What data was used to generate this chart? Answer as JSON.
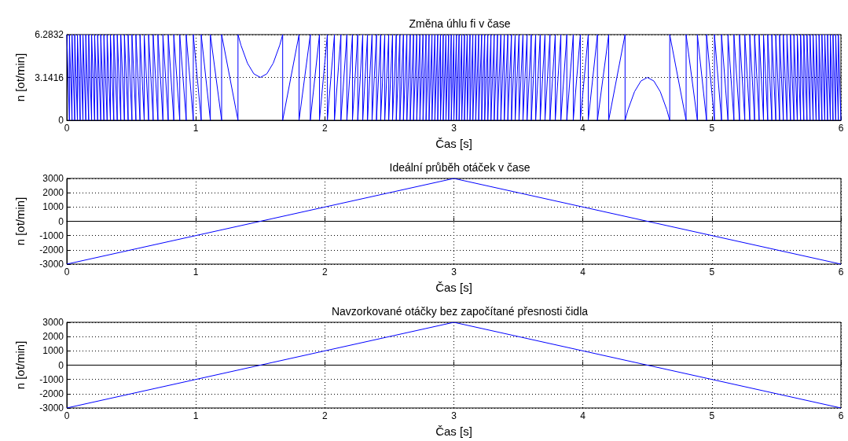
{
  "chart_data": [
    {
      "type": "line",
      "title": "Změna úhlu fi v čase",
      "xlabel": "Čas [s]",
      "ylabel": "n [ot/min]",
      "xlim": [
        0,
        6
      ],
      "ylim": [
        0,
        6.2832
      ],
      "xticks": [
        0,
        1,
        2,
        3,
        4,
        5,
        6
      ],
      "yticks": [
        0,
        3.1416,
        6.2832
      ],
      "grid": true,
      "series": [
        {
          "color": "#0000ff",
          "x": [
            0,
            0.0201,
            0.0201,
            0.0405,
            0.0405,
            0.0613,
            0.0613,
            0.0823,
            0.0823,
            0.1036,
            0.1036,
            0.1252,
            0.1252,
            0.1472,
            0.1472,
            0.1696,
            0.1696,
            0.1923,
            0.1923,
            0.2155,
            0.2155,
            0.239,
            0.239,
            0.2631,
            0.2631,
            0.2876,
            0.2876,
            0.3126,
            0.3126,
            0.3381,
            0.3381,
            0.3642,
            0.3642,
            0.3909,
            0.3909,
            0.4183,
            0.4183,
            0.4464,
            0.4464,
            0.4753,
            0.4753,
            0.505,
            0.505,
            0.5356,
            0.5356,
            0.5673,
            0.5673,
            0.6,
            0.6,
            0.634,
            0.634,
            0.6693,
            0.6693,
            0.7063,
            0.7063,
            0.745,
            0.745,
            0.7859,
            0.7859,
            0.8292,
            0.8292,
            0.8755,
            0.8755,
            0.9255,
            0.9255,
            0.9804,
            0.9804,
            1.0417,
            1.0417,
            1.1127,
            1.1127,
            1.2,
            1.2,
            1.3268,
            1.3268,
            1.35,
            1.4,
            1.45,
            1.5,
            1.55,
            1.6,
            1.65,
            1.6732,
            1.6732,
            1.8,
            1.8,
            1.8873,
            1.8873,
            1.9583,
            1.9583,
            2.0196,
            2.0196,
            2.0745,
            2.0745,
            2.1245,
            2.1245,
            2.1708,
            2.1708,
            2.2141,
            2.2141,
            2.255,
            2.255,
            2.2937,
            2.2937,
            2.3307,
            2.3307,
            2.366,
            2.366,
            2.4,
            2.4,
            2.4327,
            2.4327,
            2.4644,
            2.4644,
            2.495,
            2.495,
            2.5247,
            2.5247,
            2.5536,
            2.5536,
            2.5817,
            2.5817,
            2.6091,
            2.6091,
            2.6358,
            2.6358,
            2.6619,
            2.6619,
            2.6874,
            2.6874,
            2.7124,
            2.7124,
            2.7369,
            2.7369,
            2.761,
            2.761,
            2.7845,
            2.7845,
            2.8077,
            2.8077,
            2.8304,
            2.8304,
            2.8528,
            2.8528,
            2.8748,
            2.8748,
            2.8964,
            2.8964,
            2.9177,
            2.9177,
            2.9387,
            2.9387,
            2.9595,
            2.9595,
            2.9799,
            2.9799,
            3,
            3,
            3.0201,
            3.0201,
            3.0405,
            3.0405,
            3.0613,
            3.0613,
            3.0823,
            3.0823,
            3.1036,
            3.1036,
            3.1252,
            3.1252,
            3.1472,
            3.1472,
            3.1696,
            3.1696,
            3.1923,
            3.1923,
            3.2155,
            3.2155,
            3.239,
            3.239,
            3.2631,
            3.2631,
            3.2876,
            3.2876,
            3.3126,
            3.3126,
            3.3381,
            3.3381,
            3.3642,
            3.3642,
            3.3909,
            3.3909,
            3.4183,
            3.4183,
            3.4464,
            3.4464,
            3.4753,
            3.4753,
            3.505,
            3.505,
            3.5356,
            3.5356,
            3.5673,
            3.5673,
            3.6,
            3.6,
            3.634,
            3.634,
            3.6693,
            3.6693,
            3.7063,
            3.7063,
            3.745,
            3.745,
            3.7859,
            3.7859,
            3.8292,
            3.8292,
            3.8755,
            3.8755,
            3.9255,
            3.9255,
            3.9804,
            3.9804,
            4.0417,
            4.0417,
            4.1127,
            4.1127,
            4.2,
            4.2,
            4.3268,
            4.3268,
            4.35,
            4.4,
            4.45,
            4.5,
            4.55,
            4.6,
            4.65,
            4.6732,
            4.6732,
            4.8,
            4.8,
            4.8873,
            4.8873,
            4.9583,
            4.9583,
            5.0196,
            5.0196,
            5.0745,
            5.0745,
            5.1245,
            5.1245,
            5.1708,
            5.1708,
            5.2141,
            5.2141,
            5.255,
            5.255,
            5.2937,
            5.2937,
            5.3307,
            5.3307,
            5.366,
            5.366,
            5.4,
            5.4,
            5.4327,
            5.4327,
            5.4644,
            5.4644,
            5.495,
            5.495,
            5.5247,
            5.5247,
            5.5536,
            5.5536,
            5.5817,
            5.5817,
            5.6091,
            5.6091,
            5.6358,
            5.6358,
            5.6619,
            5.6619,
            5.6874,
            5.6874,
            5.7124,
            5.7124,
            5.7369,
            5.7369,
            5.761,
            5.761,
            5.7845,
            5.7845,
            5.8077,
            5.8077,
            5.8304,
            5.8304,
            5.8528,
            5.8528,
            5.8748,
            5.8748,
            5.8964,
            5.8964,
            5.9177,
            5.9177,
            5.9387,
            5.9387,
            5.9595,
            5.9595,
            5.9799,
            5.9799,
            6
          ],
          "values": [
            6.2832,
            0,
            6.2832,
            0,
            6.2832,
            0,
            6.2832,
            0,
            6.2832,
            0,
            6.2832,
            0,
            6.2832,
            0,
            6.2832,
            0,
            6.2832,
            0,
            6.2832,
            0,
            6.2832,
            0,
            6.2832,
            0,
            6.2832,
            0,
            6.2832,
            0,
            6.2832,
            0,
            6.2832,
            0,
            6.2832,
            0,
            6.2832,
            0,
            6.2832,
            0,
            6.2832,
            0,
            6.2832,
            0,
            6.2832,
            0,
            6.2832,
            0,
            6.2832,
            0,
            6.2832,
            0,
            6.2832,
            0,
            6.2832,
            0,
            6.2832,
            0,
            6.2832,
            0,
            6.2832,
            0,
            6.2832,
            0,
            6.2832,
            0,
            6.2832,
            0,
            6.2832,
            0,
            6.2832,
            0,
            6.2832,
            0,
            6.2832,
            0,
            6.2832,
            5.498,
            4.189,
            3.403,
            3.1416,
            3.403,
            4.189,
            5.498,
            6.2832,
            0,
            6.2832,
            0,
            6.2832,
            0,
            6.2832,
            0,
            6.2832,
            0,
            6.2832,
            0,
            6.2832,
            0,
            6.2832,
            0,
            6.2832,
            0,
            6.2832,
            0,
            6.2832,
            0,
            6.2832,
            0,
            6.2832,
            0,
            6.2832,
            0,
            6.2832,
            0,
            6.2832,
            0,
            6.2832,
            0,
            6.2832,
            0,
            6.2832,
            0,
            6.2832,
            0,
            6.2832,
            0,
            6.2832,
            0,
            6.2832,
            0,
            6.2832,
            0,
            6.2832,
            0,
            6.2832,
            0,
            6.2832,
            0,
            6.2832,
            0,
            6.2832,
            0,
            6.2832,
            0,
            6.2832,
            0,
            6.2832,
            0,
            6.2832,
            0,
            6.2832,
            0,
            6.2832,
            0,
            6.2832,
            0,
            6.2832,
            0,
            6.2832,
            0,
            6.2832,
            0,
            6.2832,
            0,
            6.2832,
            0,
            6.2832,
            0,
            6.2832,
            0,
            6.2832,
            0,
            6.2832,
            0,
            6.2832,
            0,
            6.2832,
            0,
            6.2832,
            0,
            6.2832,
            0,
            6.2832,
            0,
            6.2832,
            0,
            6.2832,
            0,
            6.2832,
            0,
            6.2832,
            0,
            6.2832,
            0,
            6.2832,
            0,
            6.2832,
            0,
            6.2832,
            0,
            6.2832,
            0,
            6.2832,
            0,
            6.2832,
            0,
            6.2832,
            0,
            6.2832,
            0,
            6.2832,
            0,
            6.2832,
            0,
            6.2832,
            0,
            6.2832,
            0,
            6.2832,
            0,
            6.2832,
            0,
            6.2832,
            0,
            6.2832,
            0,
            6.2832,
            0,
            6.2832,
            0,
            6.2832,
            0,
            6.2832,
            0,
            0.785,
            2.094,
            2.88,
            3.1416,
            2.88,
            2.094,
            0.785,
            0,
            6.2832,
            0,
            6.2832,
            0,
            6.2832,
            0,
            6.2832,
            0,
            6.2832,
            0,
            6.2832,
            0,
            6.2832,
            0,
            6.2832,
            0,
            6.2832,
            0,
            6.2832,
            0,
            6.2832,
            0,
            6.2832,
            0,
            6.2832,
            0,
            6.2832,
            0,
            6.2832,
            0,
            6.2832,
            0,
            6.2832,
            0,
            6.2832,
            0,
            6.2832,
            0,
            6.2832,
            0,
            6.2832,
            0,
            6.2832,
            0,
            6.2832,
            0,
            6.2832,
            0,
            6.2832,
            0,
            6.2832,
            0,
            6.2832,
            0,
            6.2832,
            0,
            6.2832,
            0,
            6.2832,
            0,
            6.2832,
            0,
            6.2832,
            0,
            6.2832,
            0,
            6.2832,
            0,
            6.2832,
            0,
            6.2832,
            0,
            6.2832,
            0
          ]
        }
      ]
    },
    {
      "type": "line",
      "title": "Ideální průběh otáček v čase",
      "xlabel": "Čas [s]",
      "ylabel": "n [ot/min]",
      "xlim": [
        0,
        6
      ],
      "ylim": [
        -3000,
        3000
      ],
      "xticks": [
        0,
        1,
        2,
        3,
        4,
        5,
        6
      ],
      "yticks": [
        -3000,
        -2000,
        -1000,
        0,
        1000,
        2000,
        3000
      ],
      "grid": true,
      "series": [
        {
          "color": "#0000ff",
          "x": [
            0,
            3,
            6
          ],
          "values": [
            -3000,
            3000,
            -3000
          ]
        }
      ]
    },
    {
      "type": "line",
      "title": "Navzorkované otáčky bez započítané přesnosti čidla",
      "xlabel": "Čas [s]",
      "ylabel": "n [ot/min]",
      "xlim": [
        0,
        6
      ],
      "ylim": [
        -3000,
        3000
      ],
      "xticks": [
        0,
        1,
        2,
        3,
        4,
        5,
        6
      ],
      "yticks": [
        -3000,
        -2000,
        -1000,
        0,
        1000,
        2000,
        3000
      ],
      "grid": true,
      "series": [
        {
          "color": "#0000ff",
          "x": [
            0,
            3,
            6
          ],
          "values": [
            -3000,
            3000,
            -3000
          ]
        }
      ]
    }
  ]
}
